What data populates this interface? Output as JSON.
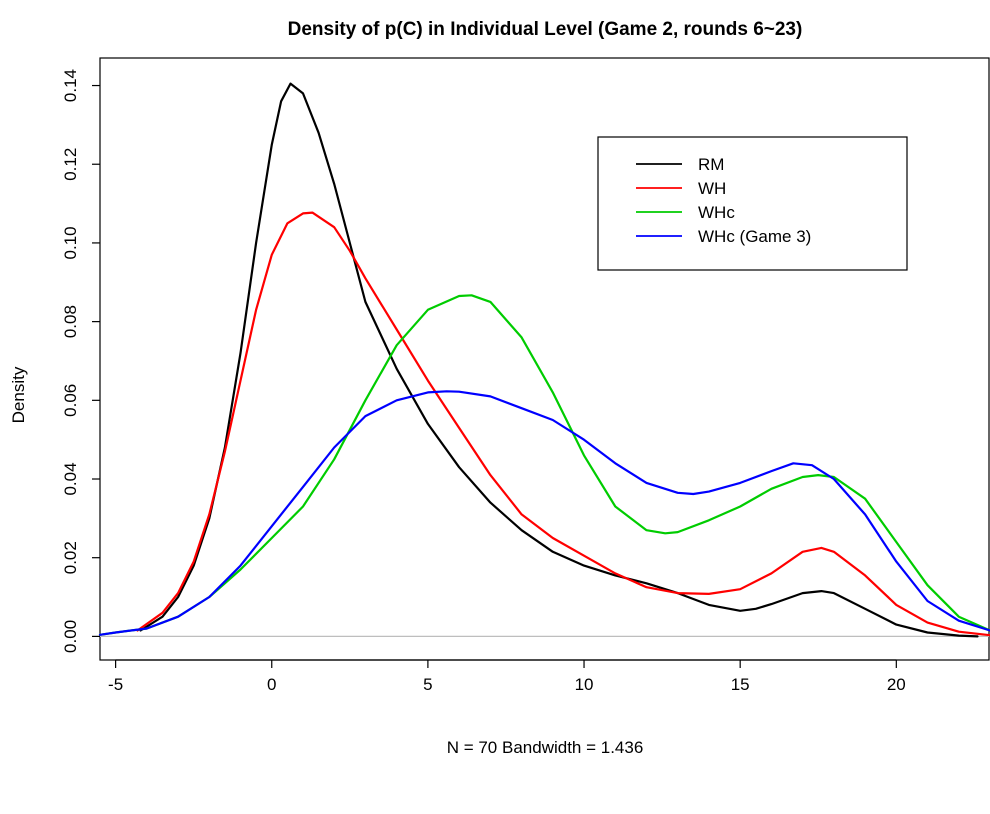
{
  "chart_data": {
    "type": "line",
    "title": "Density of p(C) in Individual Level (Game 2, rounds 6~23)",
    "xlabel": "N = 70   Bandwidth = 1.436",
    "ylabel": "Density",
    "xlim": [
      -5.5,
      23
    ],
    "ylim": [
      -0.006,
      0.147
    ],
    "x_ticks": [
      -5,
      0,
      5,
      10,
      15,
      20
    ],
    "x_tick_labels": [
      "-5",
      "0",
      "5",
      "10",
      "15",
      "20"
    ],
    "y_ticks": [
      0.0,
      0.02,
      0.04,
      0.06,
      0.08,
      0.1,
      0.12,
      0.14
    ],
    "y_tick_labels": [
      "0.00",
      "0.02",
      "0.04",
      "0.06",
      "0.08",
      "0.10",
      "0.12",
      "0.14"
    ],
    "baseline": 0,
    "grid": false,
    "legend_position": "top-right",
    "series": [
      {
        "name": "RM",
        "color": "#000000",
        "points": [
          [
            -4.2,
            0.0015
          ],
          [
            -3.5,
            0.005
          ],
          [
            -3,
            0.01
          ],
          [
            -2.5,
            0.018
          ],
          [
            -2,
            0.03
          ],
          [
            -1.5,
            0.048
          ],
          [
            -1,
            0.072
          ],
          [
            -0.5,
            0.1
          ],
          [
            0,
            0.125
          ],
          [
            0.3,
            0.136
          ],
          [
            0.6,
            0.1405
          ],
          [
            1,
            0.138
          ],
          [
            1.5,
            0.128
          ],
          [
            2,
            0.115
          ],
          [
            2.5,
            0.1
          ],
          [
            3,
            0.085
          ],
          [
            4,
            0.068
          ],
          [
            5,
            0.054
          ],
          [
            6,
            0.043
          ],
          [
            7,
            0.034
          ],
          [
            8,
            0.027
          ],
          [
            9,
            0.0215
          ],
          [
            10,
            0.018
          ],
          [
            11,
            0.0155
          ],
          [
            12,
            0.0135
          ],
          [
            13,
            0.011
          ],
          [
            14,
            0.008
          ],
          [
            15,
            0.0065
          ],
          [
            15.5,
            0.007
          ],
          [
            16,
            0.0082
          ],
          [
            17,
            0.011
          ],
          [
            17.6,
            0.0115
          ],
          [
            18,
            0.011
          ],
          [
            19,
            0.007
          ],
          [
            20,
            0.003
          ],
          [
            21,
            0.001
          ],
          [
            22,
            0.0002
          ],
          [
            22.6,
            0.0
          ]
        ]
      },
      {
        "name": "WH",
        "color": "#ff0000",
        "points": [
          [
            -4.3,
            0.0015
          ],
          [
            -3.5,
            0.006
          ],
          [
            -3,
            0.011
          ],
          [
            -2.5,
            0.019
          ],
          [
            -2,
            0.031
          ],
          [
            -1.5,
            0.047
          ],
          [
            -1,
            0.065
          ],
          [
            -0.5,
            0.083
          ],
          [
            0,
            0.097
          ],
          [
            0.5,
            0.105
          ],
          [
            1,
            0.1075
          ],
          [
            1.3,
            0.1077
          ],
          [
            2,
            0.104
          ],
          [
            2.5,
            0.098
          ],
          [
            3,
            0.091
          ],
          [
            4,
            0.078
          ],
          [
            5,
            0.065
          ],
          [
            6,
            0.053
          ],
          [
            7,
            0.041
          ],
          [
            8,
            0.031
          ],
          [
            9,
            0.025
          ],
          [
            10,
            0.0205
          ],
          [
            11,
            0.016
          ],
          [
            12,
            0.0125
          ],
          [
            13,
            0.011
          ],
          [
            14,
            0.0108
          ],
          [
            15,
            0.012
          ],
          [
            16,
            0.016
          ],
          [
            17,
            0.0215
          ],
          [
            17.6,
            0.0225
          ],
          [
            18,
            0.0215
          ],
          [
            19,
            0.0155
          ],
          [
            20,
            0.008
          ],
          [
            21,
            0.0035
          ],
          [
            22,
            0.0012
          ],
          [
            23,
            0.0003
          ]
        ]
      },
      {
        "name": "WHc",
        "color": "#00cc00",
        "points": [
          [
            -5.5,
            0.0004
          ],
          [
            -5,
            0.001
          ],
          [
            -4,
            0.002
          ],
          [
            -3,
            0.005
          ],
          [
            -2,
            0.01
          ],
          [
            -1,
            0.017
          ],
          [
            0,
            0.025
          ],
          [
            1,
            0.033
          ],
          [
            2,
            0.045
          ],
          [
            3,
            0.06
          ],
          [
            4,
            0.074
          ],
          [
            5,
            0.083
          ],
          [
            6,
            0.0865
          ],
          [
            6.4,
            0.0867
          ],
          [
            7,
            0.085
          ],
          [
            8,
            0.076
          ],
          [
            9,
            0.062
          ],
          [
            10,
            0.046
          ],
          [
            11,
            0.033
          ],
          [
            12,
            0.027
          ],
          [
            12.6,
            0.0262
          ],
          [
            13,
            0.0265
          ],
          [
            14,
            0.0295
          ],
          [
            15,
            0.033
          ],
          [
            16,
            0.0375
          ],
          [
            17,
            0.0405
          ],
          [
            17.5,
            0.041
          ],
          [
            18,
            0.0405
          ],
          [
            19,
            0.035
          ],
          [
            20,
            0.024
          ],
          [
            21,
            0.013
          ],
          [
            22,
            0.005
          ],
          [
            23,
            0.0015
          ]
        ]
      },
      {
        "name": "WHc (Game 3)",
        "color": "#0000ff",
        "points": [
          [
            -5.5,
            0.0004
          ],
          [
            -5,
            0.001
          ],
          [
            -4,
            0.002
          ],
          [
            -3,
            0.005
          ],
          [
            -2,
            0.01
          ],
          [
            -1,
            0.018
          ],
          [
            0,
            0.028
          ],
          [
            1,
            0.038
          ],
          [
            2,
            0.048
          ],
          [
            3,
            0.056
          ],
          [
            4,
            0.06
          ],
          [
            5,
            0.062
          ],
          [
            5.6,
            0.0623
          ],
          [
            6,
            0.0622
          ],
          [
            7,
            0.061
          ],
          [
            8,
            0.058
          ],
          [
            9,
            0.055
          ],
          [
            10,
            0.05
          ],
          [
            11,
            0.044
          ],
          [
            12,
            0.039
          ],
          [
            13,
            0.0365
          ],
          [
            13.5,
            0.0362
          ],
          [
            14,
            0.0368
          ],
          [
            15,
            0.039
          ],
          [
            16,
            0.042
          ],
          [
            16.7,
            0.044
          ],
          [
            17.3,
            0.0435
          ],
          [
            18,
            0.04
          ],
          [
            19,
            0.031
          ],
          [
            20,
            0.019
          ],
          [
            21,
            0.009
          ],
          [
            22,
            0.004
          ],
          [
            23,
            0.0015
          ]
        ]
      }
    ]
  }
}
